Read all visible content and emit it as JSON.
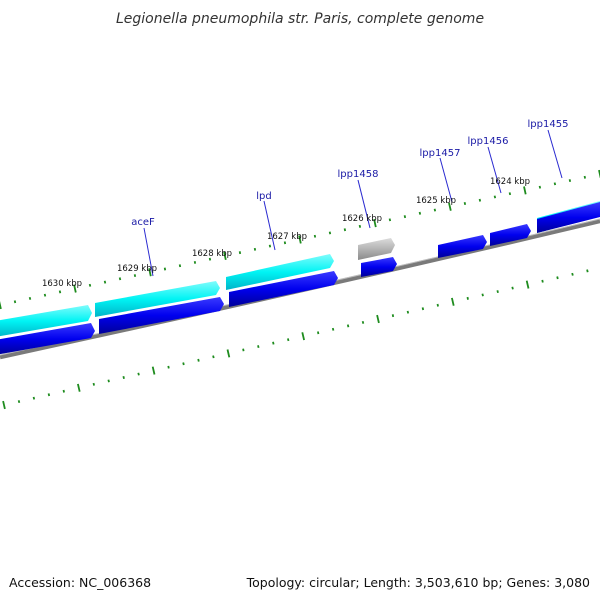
{
  "title": "Legionella pneumophila str. Paris, complete genome",
  "accession": "Accession: NC_006368",
  "topology": "Topology: circular; Length: 3,503,610 bp; Genes: 3,080",
  "colors": {
    "backbone": "#8c8c8c",
    "cds_forward": "#00ffff",
    "cds_reverse": "#0000ee",
    "other_feature": "#aaaaaa",
    "ticks": "#1e8c1e",
    "gene_label": "#1a1aa6"
  },
  "kbp_labels": [
    "1630 kbp",
    "1629 kbp",
    "1628 kbp",
    "1627 kbp",
    "1626 kbp",
    "1625 kbp",
    "1624 kbp"
  ],
  "gene_labels": [
    "aceF",
    "lpd",
    "lpp1458",
    "lpp1457",
    "lpp1456",
    "lpp1455"
  ]
}
